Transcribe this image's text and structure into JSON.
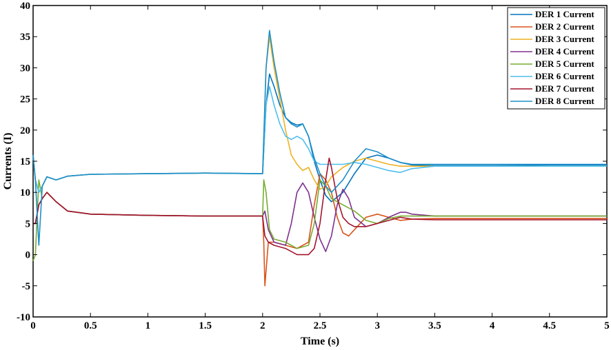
{
  "chart_data": {
    "type": "line",
    "xlabel": "Time (s)",
    "ylabel": "Currents (I)",
    "xlim": [
      0,
      5
    ],
    "ylim": [
      -10,
      40
    ],
    "x_ticks": [
      0,
      0.5,
      1,
      1.5,
      2,
      2.5,
      3,
      3.5,
      4,
      4.5,
      5
    ],
    "x_tick_labels": [
      "0",
      "0.5",
      "1",
      "1.5",
      "2",
      "2.5",
      "3",
      "3.5",
      "4",
      "4.5",
      "5"
    ],
    "y_ticks": [
      -10,
      -5,
      0,
      5,
      10,
      15,
      20,
      25,
      30,
      35,
      40
    ],
    "y_tick_labels": [
      "-10",
      "-5",
      "0",
      "5",
      "10",
      "15",
      "20",
      "25",
      "30",
      "35",
      "40"
    ],
    "grid": false,
    "legend_position": "top-right",
    "series": [
      {
        "name": "DER 1 Current",
        "color": "#0072BD",
        "x": [
          0,
          0.02,
          0.05,
          0.08,
          0.12,
          0.2,
          0.3,
          0.5,
          1,
          1.5,
          1.99,
          2.0,
          2.03,
          2.06,
          2.1,
          2.15,
          2.2,
          2.25,
          2.3,
          2.35,
          2.4,
          2.45,
          2.5,
          2.55,
          2.6,
          2.7,
          2.8,
          2.9,
          3.0,
          3.1,
          3.2,
          3.3,
          3.5,
          4,
          4.5,
          5
        ],
        "y": [
          16,
          12,
          10,
          11,
          12.5,
          12,
          12.6,
          12.9,
          13,
          13.1,
          13,
          13,
          24,
          29,
          27,
          24,
          22,
          21.2,
          20.8,
          21,
          19,
          15,
          12,
          9.5,
          8.5,
          10,
          13,
          15.5,
          16,
          15.5,
          14.8,
          14.4,
          14.3,
          14.3,
          14.4,
          14.4
        ]
      },
      {
        "name": "DER 2 Current",
        "color": "#D95319",
        "x": [
          0,
          0.02,
          0.05,
          0.08,
          0.12,
          0.2,
          0.3,
          0.5,
          1,
          1.5,
          1.99,
          2.0,
          2.01,
          2.02,
          2.05,
          2.1,
          2.2,
          2.3,
          2.4,
          2.45,
          2.5,
          2.55,
          2.6,
          2.65,
          2.7,
          2.75,
          2.8,
          2.9,
          3.0,
          3.1,
          3.2,
          3.3,
          3.5,
          4,
          4.5,
          5
        ],
        "y": [
          5,
          5,
          8,
          9,
          10,
          8.5,
          7,
          6.5,
          6.3,
          6.2,
          6.2,
          6.2,
          2,
          -5,
          2,
          2,
          1.5,
          1,
          2,
          8,
          13,
          12,
          10,
          6,
          3.5,
          3,
          4,
          6,
          6.5,
          6,
          5.5,
          5.7,
          5.8,
          5.8,
          5.8,
          5.8
        ]
      },
      {
        "name": "DER 3 Current",
        "color": "#EDB120",
        "x": [
          0,
          0.02,
          0.05,
          0.08,
          0.12,
          0.2,
          0.3,
          0.5,
          1,
          1.5,
          1.99,
          2.0,
          2.03,
          2.06,
          2.1,
          2.15,
          2.2,
          2.25,
          2.3,
          2.35,
          2.4,
          2.45,
          2.5,
          2.55,
          2.6,
          2.7,
          2.8,
          2.9,
          3.0,
          3.1,
          3.2,
          3.3,
          3.5,
          4,
          4.5,
          5
        ],
        "y": [
          16,
          12,
          10,
          11,
          12.5,
          12,
          12.6,
          12.9,
          13,
          13.1,
          13,
          13,
          30,
          35,
          30,
          25,
          20,
          16,
          14.5,
          13.5,
          14,
          12,
          10.5,
          11,
          12.5,
          14,
          15,
          15.5,
          15,
          14.5,
          14.2,
          14.2,
          14.2,
          14.2,
          14.2,
          14.2
        ]
      },
      {
        "name": "DER 4 Current",
        "color": "#7E2F8E",
        "x": [
          0,
          0.02,
          0.05,
          0.08,
          0.12,
          0.2,
          0.3,
          0.5,
          1,
          1.5,
          1.99,
          2.0,
          2.02,
          2.05,
          2.1,
          2.2,
          2.25,
          2.3,
          2.35,
          2.4,
          2.45,
          2.5,
          2.55,
          2.6,
          2.65,
          2.7,
          2.75,
          2.8,
          2.9,
          3.0,
          3.1,
          3.2,
          3.25,
          3.3,
          3.5,
          4,
          4.5,
          5
        ],
        "y": [
          5,
          5,
          8,
          9,
          10,
          8.5,
          7,
          6.5,
          6.3,
          6.2,
          6.2,
          6.2,
          7,
          4,
          2,
          1.5,
          5,
          10,
          11.5,
          10,
          6,
          2.5,
          0.5,
          3,
          8,
          10.5,
          9,
          6,
          4.5,
          5,
          6,
          6.8,
          6.8,
          6.5,
          6.2,
          6.2,
          6.2,
          6.2
        ]
      },
      {
        "name": "DER 5 Current",
        "color": "#77AC30",
        "x": [
          0,
          0.02,
          0.05,
          0.08,
          0.12,
          0.2,
          0.3,
          0.5,
          1,
          1.5,
          1.99,
          2.0,
          2.01,
          2.03,
          2.06,
          2.1,
          2.2,
          2.3,
          2.4,
          2.45,
          2.5,
          2.55,
          2.6,
          2.7,
          2.8,
          2.9,
          3.0,
          3.1,
          3.2,
          3.3,
          3.5,
          4,
          4.5,
          5
        ],
        "y": [
          -1,
          0,
          12,
          9,
          10,
          8.5,
          7,
          6.5,
          6.3,
          6.2,
          6.2,
          6.2,
          12,
          10,
          4,
          2.5,
          2,
          1,
          1.5,
          5,
          12,
          11,
          9,
          8,
          7,
          5.5,
          5,
          5.8,
          6.2,
          6.2,
          6.2,
          6.2,
          6.2,
          6.2
        ]
      },
      {
        "name": "DER 6 Current",
        "color": "#4DBEEE",
        "x": [
          0,
          0.02,
          0.05,
          0.08,
          0.12,
          0.2,
          0.3,
          0.5,
          1,
          1.5,
          1.99,
          2.0,
          2.03,
          2.06,
          2.1,
          2.15,
          2.2,
          2.25,
          2.3,
          2.35,
          2.4,
          2.45,
          2.5,
          2.55,
          2.6,
          2.7,
          2.8,
          2.9,
          3.0,
          3.1,
          3.2,
          3.3,
          3.5,
          4,
          4.5,
          5
        ],
        "y": [
          16,
          12,
          10,
          11,
          12.5,
          12,
          12.6,
          12.9,
          13,
          13.1,
          13,
          13,
          24,
          27,
          24,
          21,
          19,
          18.5,
          19,
          18.5,
          17,
          15,
          14.5,
          14.5,
          14.5,
          14.5,
          14.8,
          14.5,
          14,
          13.5,
          13.2,
          13.8,
          14.2,
          14.2,
          14.2,
          14.2
        ]
      },
      {
        "name": "DER 7 Current",
        "color": "#A2142F",
        "x": [
          0,
          0.02,
          0.05,
          0.08,
          0.12,
          0.2,
          0.3,
          0.5,
          1,
          1.5,
          1.99,
          2.0,
          2.02,
          2.05,
          2.1,
          2.2,
          2.3,
          2.4,
          2.45,
          2.5,
          2.55,
          2.58,
          2.6,
          2.65,
          2.7,
          2.75,
          2.8,
          2.9,
          3.0,
          3.1,
          3.2,
          3.3,
          3.5,
          4,
          4.5,
          5
        ],
        "y": [
          5,
          5,
          8,
          9,
          10,
          8.5,
          7,
          6.5,
          6.3,
          6.2,
          6.2,
          6.2,
          3,
          2,
          1.5,
          1,
          0,
          0,
          1,
          5,
          12,
          15.5,
          14,
          9,
          6,
          5,
          4.5,
          4.5,
          5,
          5.5,
          6,
          5.7,
          5.6,
          5.6,
          5.6,
          5.6
        ]
      },
      {
        "name": "DER 8 Current",
        "color": "#1B8FC9",
        "x": [
          0,
          0.02,
          0.05,
          0.08,
          0.12,
          0.2,
          0.3,
          0.5,
          1,
          1.5,
          1.99,
          2.0,
          2.03,
          2.06,
          2.1,
          2.15,
          2.2,
          2.25,
          2.3,
          2.35,
          2.4,
          2.45,
          2.5,
          2.55,
          2.6,
          2.7,
          2.8,
          2.9,
          3.0,
          3.1,
          3.2,
          3.3,
          3.5,
          4,
          4.5,
          5
        ],
        "y": [
          16,
          12,
          1.5,
          11,
          12.5,
          12,
          12.6,
          12.9,
          13,
          13.1,
          13,
          13,
          30,
          36,
          31,
          26,
          22,
          21,
          20.5,
          21,
          19,
          15.5,
          13,
          11,
          10,
          12,
          15,
          17,
          16.5,
          15.5,
          14.8,
          14.5,
          14.5,
          14.5,
          14.5,
          14.5
        ]
      }
    ]
  }
}
